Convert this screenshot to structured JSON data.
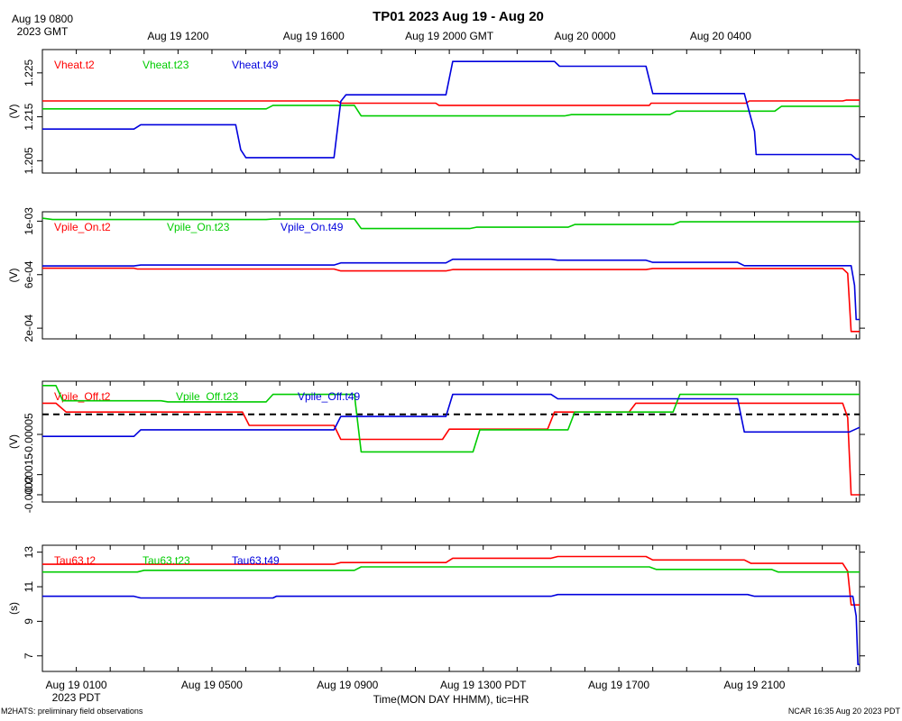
{
  "title": "TP01 2023 Aug 19 - Aug 20",
  "footer_left": "M2HATS: preliminary field observations",
  "footer_right": "NCAR 16:35 Aug 20 2023 PDT",
  "xlabel": "Time(MON DAY HHMM), tic=HR",
  "top_axis": {
    "labels": [
      {
        "hour": 0,
        "lines": [
          "Aug 19 0800",
          "2023 GMT"
        ]
      },
      {
        "hour": 4,
        "lines": [
          "Aug 19 1200"
        ]
      },
      {
        "hour": 8,
        "lines": [
          "Aug 19 1600"
        ]
      },
      {
        "hour": 12,
        "lines": [
          "Aug 19 2000 GMT"
        ]
      },
      {
        "hour": 16,
        "lines": [
          "Aug 20 0000"
        ]
      },
      {
        "hour": 20,
        "lines": [
          "Aug 20 0400"
        ]
      }
    ]
  },
  "bottom_axis": {
    "labels": [
      {
        "hour": 1,
        "lines": [
          "Aug 19 0100",
          "2023 PDT"
        ]
      },
      {
        "hour": 5,
        "lines": [
          "Aug 19 0500"
        ]
      },
      {
        "hour": 9,
        "lines": [
          "Aug 19 0900"
        ]
      },
      {
        "hour": 13,
        "lines": [
          "Aug 19 1300 PDT"
        ]
      },
      {
        "hour": 17,
        "lines": [
          "Aug 19 1700"
        ]
      },
      {
        "hour": 21,
        "lines": [
          "Aug 19 2100"
        ]
      }
    ]
  },
  "chart_data": [
    {
      "type": "line",
      "x_unit": "hours since Aug 19 0000 PDT",
      "xlim": [
        0.0,
        24.1
      ],
      "ylabel": "(V)",
      "ylim": [
        1.2022,
        1.2303
      ],
      "ticks": [
        1.205,
        1.215,
        1.225
      ],
      "tick_labels": [
        "1.205",
        "1.215",
        "1.225"
      ],
      "series": [
        {
          "name": "Vheat.t2",
          "color": "#ff0000",
          "points": [
            [
              0,
              1.2186
            ],
            [
              8.7,
              1.2186
            ],
            [
              8.8,
              1.2181
            ],
            [
              11.6,
              1.2181
            ],
            [
              11.7,
              1.2176
            ],
            [
              17.9,
              1.2176
            ],
            [
              17.95,
              1.2181
            ],
            [
              20.75,
              1.2181
            ],
            [
              20.85,
              1.2186
            ],
            [
              23.6,
              1.2186
            ],
            [
              23.7,
              1.2188
            ],
            [
              24.1,
              1.2188
            ]
          ]
        },
        {
          "name": "Vheat.t23",
          "color": "#00cc00",
          "points": [
            [
              0,
              1.2168
            ],
            [
              6.6,
              1.2168
            ],
            [
              6.8,
              1.2176
            ],
            [
              9.2,
              1.2176
            ],
            [
              9.4,
              1.2152
            ],
            [
              15.4,
              1.2152
            ],
            [
              15.6,
              1.2155
            ],
            [
              18.5,
              1.2155
            ],
            [
              18.7,
              1.2163
            ],
            [
              21.6,
              1.2163
            ],
            [
              21.8,
              1.2174
            ],
            [
              24.1,
              1.2174
            ]
          ]
        },
        {
          "name": "Vheat.t49",
          "color": "#0000dd",
          "points": [
            [
              0,
              1.2122
            ],
            [
              2.7,
              1.2122
            ],
            [
              2.9,
              1.2132
            ],
            [
              5.7,
              1.2132
            ],
            [
              5.85,
              1.2075
            ],
            [
              6.0,
              1.2057
            ],
            [
              8.6,
              1.2057
            ],
            [
              8.8,
              1.2185
            ],
            [
              8.95,
              1.22
            ],
            [
              11.9,
              1.22
            ],
            [
              12.1,
              1.2276
            ],
            [
              15.1,
              1.2276
            ],
            [
              15.25,
              1.2265
            ],
            [
              17.8,
              1.2265
            ],
            [
              18.0,
              1.2203
            ],
            [
              20.7,
              1.2203
            ],
            [
              21.0,
              1.2117
            ],
            [
              21.05,
              1.2064
            ],
            [
              23.85,
              1.2064
            ],
            [
              24.0,
              1.2054
            ],
            [
              24.1,
              1.2054
            ]
          ]
        }
      ]
    },
    {
      "type": "line",
      "x_unit": "hours since Aug 19 0000 PDT",
      "xlim": [
        0.0,
        24.1
      ],
      "ylabel": "(V)",
      "ylim": [
        0.00012,
        0.00107
      ],
      "ticks": [
        0.0002,
        0.0006,
        0.001
      ],
      "tick_labels": [
        "2e-04",
        "6e-04",
        "1e-03"
      ],
      "series": [
        {
          "name": "Vpile_On.t2",
          "color": "#ff0000",
          "points": [
            [
              0,
              0.000648
            ],
            [
              2.7,
              0.000648
            ],
            [
              2.8,
              0.000642
            ],
            [
              8.6,
              0.000642
            ],
            [
              8.8,
              0.000628
            ],
            [
              11.9,
              0.000628
            ],
            [
              12.1,
              0.000638
            ],
            [
              17.8,
              0.000638
            ],
            [
              18.0,
              0.000646
            ],
            [
              23.6,
              0.000646
            ],
            [
              23.75,
              0.00061
            ],
            [
              23.85,
              0.000175
            ],
            [
              24.1,
              0.000175
            ]
          ]
        },
        {
          "name": "Vpile_On.t23",
          "color": "#00cc00",
          "points": [
            [
              0,
              0.001022
            ],
            [
              0.3,
              0.001012
            ],
            [
              6.6,
              0.001012
            ],
            [
              6.8,
              0.001016
            ],
            [
              9.2,
              0.001016
            ],
            [
              9.4,
              0.000945
            ],
            [
              12.6,
              0.000945
            ],
            [
              12.8,
              0.000955
            ],
            [
              15.5,
              0.000955
            ],
            [
              15.7,
              0.000975
            ],
            [
              18.6,
              0.000975
            ],
            [
              18.8,
              0.000995
            ],
            [
              24.1,
              0.000995
            ]
          ]
        },
        {
          "name": "Vpile_On.t49",
          "color": "#0000dd",
          "points": [
            [
              0,
              0.000665
            ],
            [
              2.7,
              0.000665
            ],
            [
              2.9,
              0.000672
            ],
            [
              8.6,
              0.000672
            ],
            [
              8.8,
              0.000688
            ],
            [
              11.9,
              0.000688
            ],
            [
              12.1,
              0.000715
            ],
            [
              15.0,
              0.000715
            ],
            [
              15.2,
              0.000708
            ],
            [
              17.8,
              0.000708
            ],
            [
              18.0,
              0.000692
            ],
            [
              20.5,
              0.000692
            ],
            [
              20.7,
              0.000667
            ],
            [
              23.85,
              0.000667
            ],
            [
              23.95,
              0.00052
            ],
            [
              24.0,
              0.000265
            ],
            [
              24.1,
              0.000265
            ]
          ]
        }
      ]
    },
    {
      "type": "line",
      "x_unit": "hours since Aug 19 0000 PDT",
      "xlim": [
        0.0,
        24.1
      ],
      "ylabel": "(V)",
      "ylim": [
        -0.000218,
        8.22e-05
      ],
      "ticks": [
        -0.0002,
        -0.00015,
        -5e-05
      ],
      "tick_labels": [
        "-0.0002",
        "-0.00015",
        "-0.00005"
      ],
      "reference_line": 0,
      "series": [
        {
          "name": "Vpile_Off.t2",
          "color": "#ff0000",
          "points": [
            [
              0,
              2.75e-05
            ],
            [
              0.4,
              2.75e-05
            ],
            [
              0.7,
              5.5e-06
            ],
            [
              5.9,
              5.5e-06
            ],
            [
              6.1,
              -2.75e-05
            ],
            [
              8.6,
              -2.75e-05
            ],
            [
              8.8,
              -6.23e-05
            ],
            [
              11.8,
              -6.23e-05
            ],
            [
              12.0,
              -3.7e-05
            ],
            [
              14.9,
              -3.7e-05
            ],
            [
              15.1,
              5.5e-06
            ],
            [
              17.3,
              5.5e-06
            ],
            [
              17.5,
              2.75e-05
            ],
            [
              23.6,
              2.75e-05
            ],
            [
              23.75,
              -8e-06
            ],
            [
              23.85,
              -0.0002
            ],
            [
              24.1,
              -0.0002
            ]
          ]
        },
        {
          "name": "Vpile_Off.t23",
          "color": "#00cc00",
          "points": [
            [
              0,
              7.15e-05
            ],
            [
              0.4,
              7.15e-05
            ],
            [
              0.6,
              3.35e-05
            ],
            [
              3.5,
              3.35e-05
            ],
            [
              3.7,
              3.1e-05
            ],
            [
              6.6,
              3.1e-05
            ],
            [
              6.8,
              4.95e-05
            ],
            [
              9.2,
              4.95e-05
            ],
            [
              9.4,
              -9.35e-05
            ],
            [
              12.7,
              -9.35e-05
            ],
            [
              12.9,
              -3.85e-05
            ],
            [
              15.5,
              -3.85e-05
            ],
            [
              15.7,
              5.5e-06
            ],
            [
              18.6,
              5.5e-06
            ],
            [
              18.8,
              4.95e-05
            ],
            [
              24.1,
              4.95e-05
            ]
          ]
        },
        {
          "name": "Vpile_Off.t49",
          "color": "#0000dd",
          "points": [
            [
              0,
              -5.5e-05
            ],
            [
              2.7,
              -5.5e-05
            ],
            [
              2.9,
              -3.85e-05
            ],
            [
              8.6,
              -3.85e-05
            ],
            [
              8.8,
              -5.5e-06
            ],
            [
              11.9,
              -5.5e-06
            ],
            [
              12.1,
              4.95e-05
            ],
            [
              15.0,
              4.95e-05
            ],
            [
              15.2,
              3.85e-05
            ],
            [
              20.5,
              3.85e-05
            ],
            [
              20.7,
              -4.4e-05
            ],
            [
              23.8,
              -4.4e-05
            ],
            [
              24.1,
              -3.25e-05
            ]
          ]
        }
      ]
    },
    {
      "type": "line",
      "x_unit": "hours since Aug 19 0000 PDT",
      "xlim": [
        0.0,
        24.1
      ],
      "ylabel": "(s)",
      "ylim": [
        6.1,
        13.4
      ],
      "ticks": [
        7,
        9,
        11,
        13
      ],
      "tick_labels": [
        "7",
        "9",
        "11",
        "13"
      ],
      "series": [
        {
          "name": "Tau63.t2",
          "color": "#ff0000",
          "points": [
            [
              0,
              12.3
            ],
            [
              8.6,
              12.3
            ],
            [
              8.8,
              12.4
            ],
            [
              11.9,
              12.4
            ],
            [
              12.1,
              12.65
            ],
            [
              15.0,
              12.65
            ],
            [
              15.2,
              12.75
            ],
            [
              17.8,
              12.75
            ],
            [
              18.0,
              12.55
            ],
            [
              20.7,
              12.55
            ],
            [
              20.9,
              12.35
            ],
            [
              23.6,
              12.35
            ],
            [
              23.75,
              11.9
            ],
            [
              23.85,
              9.95
            ],
            [
              24.1,
              9.95
            ]
          ]
        },
        {
          "name": "Tau63.t23",
          "color": "#00cc00",
          "points": [
            [
              0,
              11.85
            ],
            [
              2.8,
              11.85
            ],
            [
              3.0,
              11.95
            ],
            [
              9.2,
              11.95
            ],
            [
              9.4,
              12.15
            ],
            [
              17.9,
              12.15
            ],
            [
              18.1,
              12.0
            ],
            [
              21.5,
              12.0
            ],
            [
              21.7,
              11.85
            ],
            [
              24.1,
              11.85
            ]
          ]
        },
        {
          "name": "Tau63.t49",
          "color": "#0000dd",
          "points": [
            [
              0,
              10.45
            ],
            [
              2.7,
              10.45
            ],
            [
              2.9,
              10.35
            ],
            [
              6.8,
              10.35
            ],
            [
              6.9,
              10.45
            ],
            [
              15.0,
              10.45
            ],
            [
              15.2,
              10.55
            ],
            [
              20.8,
              10.55
            ],
            [
              21.0,
              10.45
            ],
            [
              23.9,
              10.45
            ],
            [
              24.0,
              9.3
            ],
            [
              24.05,
              6.5
            ],
            [
              24.1,
              6.5
            ]
          ]
        }
      ]
    }
  ]
}
